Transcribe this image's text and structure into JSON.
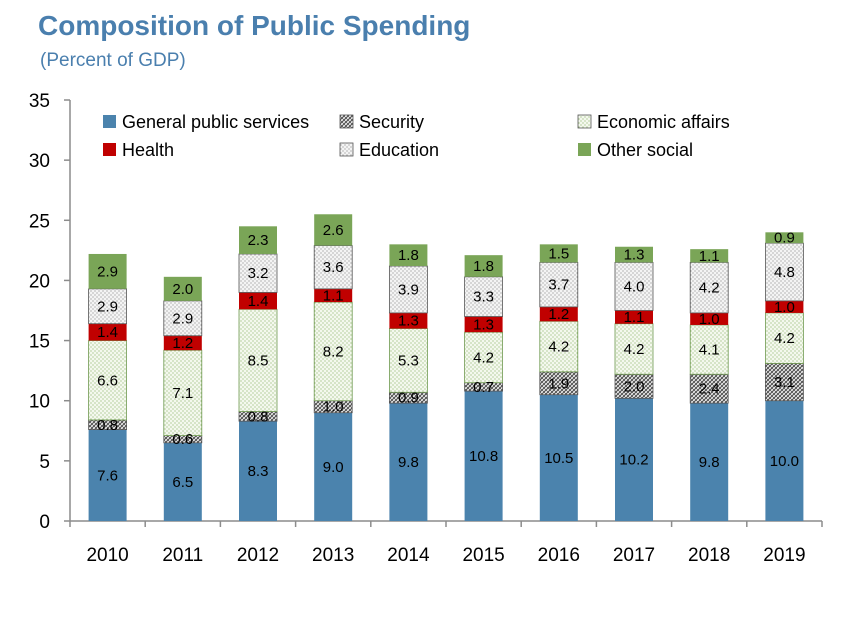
{
  "title": "Composition of Public Spending",
  "subtitle": "(Percent of GDP)",
  "chart_data": {
    "type": "bar",
    "stacked": true,
    "categories": [
      "2010",
      "2011",
      "2012",
      "2013",
      "2014",
      "2015",
      "2016",
      "2017",
      "2018",
      "2019"
    ],
    "ylim": [
      0,
      35
    ],
    "yticks": [
      0,
      5,
      10,
      15,
      20,
      25,
      30,
      35
    ],
    "grid": false,
    "legend_position": "top",
    "series": [
      {
        "name": "General public services",
        "color": "#4b83ad",
        "pattern": "solid",
        "values": [
          7.6,
          6.5,
          8.3,
          9.0,
          9.8,
          10.8,
          10.5,
          10.2,
          9.8,
          10.0
        ]
      },
      {
        "name": "Security",
        "color": "#5a5a5a",
        "pattern": "crosshatch",
        "values": [
          0.8,
          0.6,
          0.8,
          1.0,
          0.9,
          0.7,
          1.9,
          2.0,
          2.4,
          3.1
        ]
      },
      {
        "name": "Economic affairs",
        "color": "#7aa557",
        "pattern": "dots",
        "values": [
          6.6,
          7.1,
          8.5,
          8.2,
          5.3,
          4.2,
          4.2,
          4.2,
          4.1,
          4.2
        ]
      },
      {
        "name": "Health",
        "color": "#c00000",
        "pattern": "solid",
        "values": [
          1.4,
          1.2,
          1.4,
          1.1,
          1.3,
          1.3,
          1.2,
          1.1,
          1.0,
          1.0
        ]
      },
      {
        "name": "Education",
        "color": "#8a8a8a",
        "pattern": "dots",
        "values": [
          2.9,
          2.9,
          3.2,
          3.6,
          3.9,
          3.3,
          3.7,
          4.0,
          4.2,
          4.8
        ]
      },
      {
        "name": "Other social",
        "color": "#7aa557",
        "pattern": "solid",
        "values": [
          2.9,
          2.0,
          2.3,
          2.6,
          1.8,
          1.8,
          1.5,
          1.3,
          1.1,
          0.9
        ]
      }
    ],
    "legend_order": [
      "General public services",
      "Security",
      "Economic affairs",
      "Health",
      "Education",
      "Other social"
    ]
  }
}
